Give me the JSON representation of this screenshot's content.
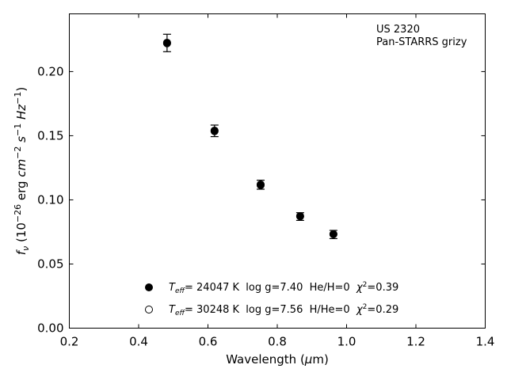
{
  "chart_data": {
    "type": "scatter",
    "annotations": [
      "US 2320",
      "Pan-STARRS grizy"
    ],
    "xlabel": "Wavelength (μm)",
    "ylabel": "f_ν (10^-26 erg cm^-2 s^-1 Hz^-1)",
    "xlim": [
      0.2,
      1.4
    ],
    "ylim": [
      0.0,
      0.245
    ],
    "xticks": [
      "0.2",
      "0.4",
      "0.6",
      "0.8",
      "1.0",
      "1.2",
      "1.4"
    ],
    "yticks": [
      "0.00",
      "0.05",
      "0.10",
      "0.15",
      "0.20"
    ],
    "grid": false,
    "observed": {
      "x": [
        0.482,
        0.619,
        0.752,
        0.866,
        0.962
      ],
      "y": [
        0.2223,
        0.1538,
        0.1118,
        0.087,
        0.073
      ],
      "yerr": [
        0.0068,
        0.0045,
        0.0035,
        0.003,
        0.0032
      ]
    },
    "series": [
      {
        "name": "T_eff= 24047 K  log g=7.40  He/H=0  χ²=0.39",
        "marker": "filled-circle",
        "x": [
          0.482,
          0.619,
          0.752,
          0.866,
          0.962
        ],
        "y": [
          0.2225,
          0.154,
          0.1115,
          0.0872,
          0.0733
        ]
      },
      {
        "name": "T_eff= 30248 K  log g=7.56  H/He=0  χ²=0.29",
        "marker": "open-circle",
        "x": [
          0.482,
          0.619,
          0.752,
          0.866,
          0.962
        ],
        "y": [
          0.222,
          0.1535,
          0.112,
          0.0873,
          0.0732
        ]
      }
    ],
    "legend": {
      "placement": "lower-center",
      "entries": [
        {
          "marker": "filled-circle",
          "teff_sym": "T",
          "teff_sub": "eff",
          "text": "= 24047 K  log g=7.40  He/H=0  ",
          "chi_sym": "χ",
          "chi_sup": "2",
          "chi_val": "=0.39"
        },
        {
          "marker": "open-circle",
          "teff_sym": "T",
          "teff_sub": "eff",
          "text": "= 30248 K  log g=7.56  H/He=0  ",
          "chi_sym": "χ",
          "chi_sup": "2",
          "chi_val": "=0.29"
        }
      ]
    },
    "colors": {
      "marker": "#000000",
      "background": "#ffffff"
    }
  }
}
